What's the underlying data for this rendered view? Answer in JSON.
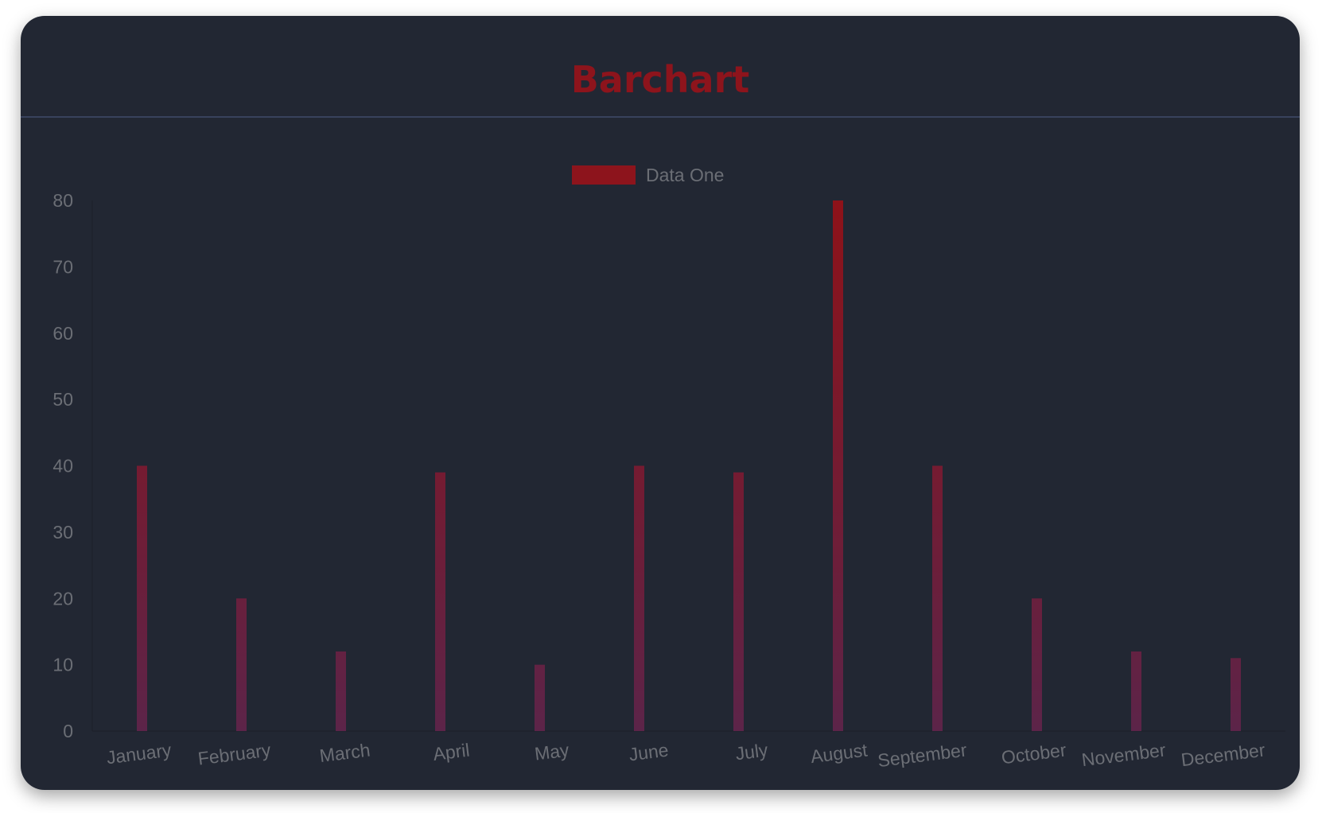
{
  "header": {
    "title": "Barchart"
  },
  "colors": {
    "background": "#222733",
    "title": "#8d141c",
    "bar_top": "#8e1219",
    "bar_bottom": "#5c2449",
    "legend": "#8d141c",
    "text": "#6b6e75"
  },
  "chart_data": {
    "type": "bar",
    "title": "",
    "xlabel": "",
    "ylabel": "",
    "categories": [
      "January",
      "February",
      "March",
      "April",
      "May",
      "June",
      "July",
      "August",
      "September",
      "October",
      "November",
      "December"
    ],
    "series": [
      {
        "name": "Data One",
        "values": [
          40,
          20,
          12,
          39,
          10,
          40,
          39,
          80,
          40,
          20,
          12,
          11
        ]
      }
    ],
    "ylim": [
      0,
      80
    ],
    "yticks": [
      "0",
      "10",
      "20",
      "30",
      "40",
      "50",
      "60",
      "70",
      "80"
    ],
    "grid": false,
    "legend": "top-center"
  }
}
